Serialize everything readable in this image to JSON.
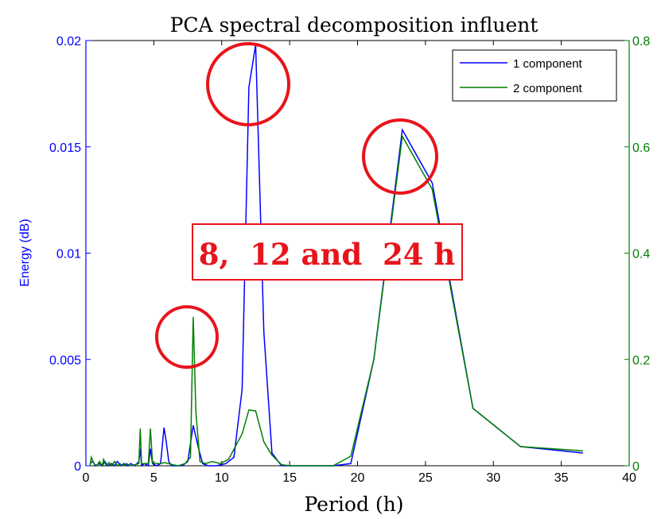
{
  "chart_data": {
    "type": "line",
    "title": "PCA spectral decomposition influent",
    "xlabel": "Period (h)",
    "ylabel_left": "Energy (dB)",
    "ylabel_right": "",
    "xlim": [
      0,
      40
    ],
    "ylim_left": [
      0,
      0.02
    ],
    "ylim_right": [
      0,
      0.8
    ],
    "x_ticks": [
      "0",
      "5",
      "10",
      "15",
      "20",
      "25",
      "30",
      "35",
      "40"
    ],
    "y_left_ticks": [
      "0",
      "0.005",
      "0.01",
      "0.015",
      "0.02"
    ],
    "y_right_ticks": [
      "0",
      "0.2",
      "0.4",
      "0.6",
      "0.8"
    ],
    "grid": false,
    "legend_position": "top-right",
    "colors": {
      "series1": "#0000ff",
      "series2": "#007f00",
      "annotation": "#e8141b"
    },
    "series": [
      {
        "name": "1 component",
        "axis": "left",
        "x": [
          0.3,
          0.5,
          0.7,
          1.0,
          1.2,
          1.4,
          1.6,
          1.9,
          2.1,
          2.3,
          2.6,
          2.8,
          3.1,
          3.3,
          3.6,
          3.9,
          4.0,
          4.1,
          4.3,
          4.6,
          4.75,
          4.9,
          5.2,
          5.5,
          5.75,
          5.9,
          6.1,
          6.3,
          6.7,
          7.1,
          7.5,
          7.9,
          8.3,
          8.6,
          9.0,
          9.6,
          10.3,
          10.9,
          11.5,
          12.0,
          12.5,
          13.1,
          13.7,
          14.4,
          15.1,
          18.2,
          19.5,
          21.2,
          23.3,
          25.5,
          28.5,
          32.0,
          36.6
        ],
        "y": [
          0.0001,
          0.0002,
          0.0,
          0.0001,
          0.0,
          0.0002,
          0.0,
          0.0001,
          0.0,
          0.0002,
          0.0,
          0.0001,
          0.0,
          0.0001,
          0.0,
          0.0002,
          0.0008,
          0.0,
          0.0001,
          0.0,
          0.0008,
          0.0001,
          0.0,
          0.0001,
          0.0018,
          0.0012,
          0.0002,
          0.0,
          0.0,
          0.0,
          0.0002,
          0.0019,
          0.0008,
          0.0001,
          0.0,
          0.0,
          0.0001,
          0.0004,
          0.0036,
          0.0178,
          0.0198,
          0.0063,
          0.0006,
          0.0,
          0.0,
          0.0,
          0.0001,
          0.005,
          0.0158,
          0.0133,
          0.0027,
          0.0009,
          0.0006
        ]
      },
      {
        "name": "2 component",
        "axis": "right",
        "x": [
          0.3,
          0.4,
          0.6,
          0.8,
          1.0,
          1.2,
          1.3,
          1.5,
          1.7,
          1.9,
          2.1,
          2.3,
          2.5,
          2.7,
          3.0,
          3.3,
          3.6,
          3.9,
          4.0,
          4.1,
          4.3,
          4.6,
          4.75,
          4.9,
          5.2,
          5.5,
          5.8,
          6.1,
          6.4,
          6.8,
          7.3,
          7.7,
          7.9,
          8.1,
          8.4,
          8.8,
          9.3,
          9.9,
          10.5,
          11.5,
          12.0,
          12.5,
          13.1,
          13.7,
          14.4,
          15.1,
          18.2,
          19.5,
          21.2,
          23.3,
          25.5,
          28.5,
          32.0,
          36.6
        ],
        "y": [
          0.0,
          0.016,
          0.004,
          0.0,
          0.008,
          0.0,
          0.012,
          0.0,
          0.006,
          0.0,
          0.008,
          0.0,
          0.004,
          0.0,
          0.004,
          0.0,
          0.002,
          0.004,
          0.07,
          0.004,
          0.004,
          0.004,
          0.07,
          0.006,
          0.004,
          0.004,
          0.006,
          0.004,
          0.002,
          0.0,
          0.004,
          0.016,
          0.28,
          0.1,
          0.008,
          0.004,
          0.008,
          0.004,
          0.012,
          0.06,
          0.105,
          0.103,
          0.045,
          0.02,
          0.002,
          0.0,
          0.0,
          0.018,
          0.2,
          0.62,
          0.52,
          0.108,
          0.036,
          0.028
        ]
      }
    ],
    "annotations": {
      "text_box": "8,  12 and  24 h"
    }
  }
}
